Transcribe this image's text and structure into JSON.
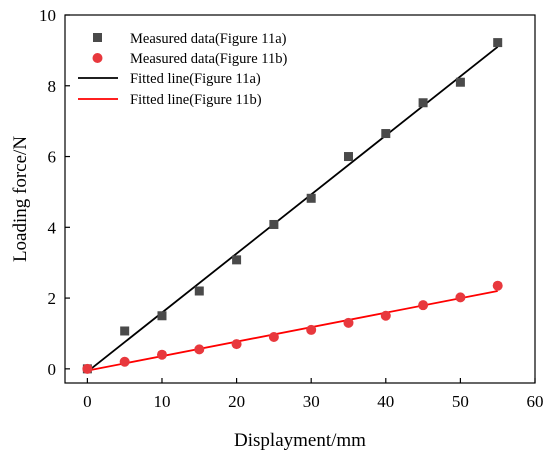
{
  "chart_data": {
    "type": "scatter",
    "xlabel": "Displayment/mm",
    "ylabel": "Loading force/N",
    "xlim": [
      -3,
      60
    ],
    "ylim": [
      -0.4,
      10
    ],
    "xticks": [
      0,
      10,
      20,
      30,
      40,
      50,
      60
    ],
    "yticks": [
      0,
      2,
      4,
      6,
      8,
      10
    ],
    "grid": false,
    "legend_position": "top-left",
    "series": [
      {
        "name": "Measured data(Figure 11a)",
        "kind": "scatter",
        "marker": "square",
        "color": "#4a4a4a",
        "x": [
          0,
          5,
          10,
          15,
          20,
          25,
          30,
          35,
          40,
          45,
          50,
          55
        ],
        "y": [
          0.0,
          1.07,
          1.5,
          2.2,
          3.08,
          4.08,
          4.82,
          6.0,
          6.65,
          7.52,
          8.1,
          9.22
        ]
      },
      {
        "name": "Measured data(Figure 11b)",
        "kind": "scatter",
        "marker": "circle",
        "color": "#e8383d",
        "x": [
          0,
          5,
          10,
          15,
          20,
          25,
          30,
          35,
          40,
          45,
          50,
          55
        ],
        "y": [
          0.0,
          0.2,
          0.4,
          0.55,
          0.7,
          0.9,
          1.1,
          1.3,
          1.5,
          1.8,
          2.02,
          2.35
        ]
      },
      {
        "name": "Fitted line(Figure 11a)",
        "kind": "line",
        "color": "#000000",
        "x": [
          0,
          55
        ],
        "y": [
          -0.08,
          9.1
        ]
      },
      {
        "name": "Fitted line(Figure 11b)",
        "kind": "line",
        "color": "#ff0000",
        "x": [
          0,
          55
        ],
        "y": [
          -0.05,
          2.2
        ]
      }
    ]
  }
}
